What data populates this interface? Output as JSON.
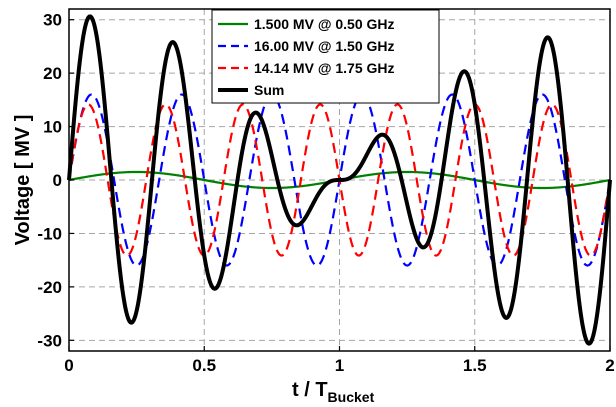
{
  "chart_data": {
    "type": "line",
    "xlabel": "t / T",
    "xlabel_sub": "Bucket",
    "ylabel": "Voltage [ MV ]",
    "xlim": [
      0,
      2
    ],
    "ylim": [
      -32,
      32
    ],
    "xticks": [
      0,
      0.5,
      1,
      1.5,
      2
    ],
    "xtick_labels": [
      "0",
      "0.5",
      "1",
      "1.5",
      "2"
    ],
    "yticks": [
      -30,
      -20,
      -10,
      0,
      10,
      20,
      30
    ],
    "ytick_labels": [
      "-30",
      "-20",
      "-10",
      "0",
      "10",
      "20",
      "30"
    ],
    "grid": true,
    "legend_position": "top-center",
    "series": [
      {
        "name": "1.500 MV @ 0.50 GHz",
        "amplitude": 1.5,
        "frequency_ghz": 0.5,
        "color": "#008000",
        "dash": "solid"
      },
      {
        "name": "16.00 MV @ 1.50 GHz",
        "amplitude": 16.0,
        "frequency_ghz": 1.5,
        "color": "#0000ff",
        "dash": "dashed"
      },
      {
        "name": "14.14 MV @ 1.75 GHz",
        "amplitude": 14.14,
        "frequency_ghz": 1.75,
        "color": "#ff0000",
        "dash": "dashed"
      },
      {
        "name": "Sum",
        "color": "#000000",
        "dash": "solid"
      }
    ]
  }
}
